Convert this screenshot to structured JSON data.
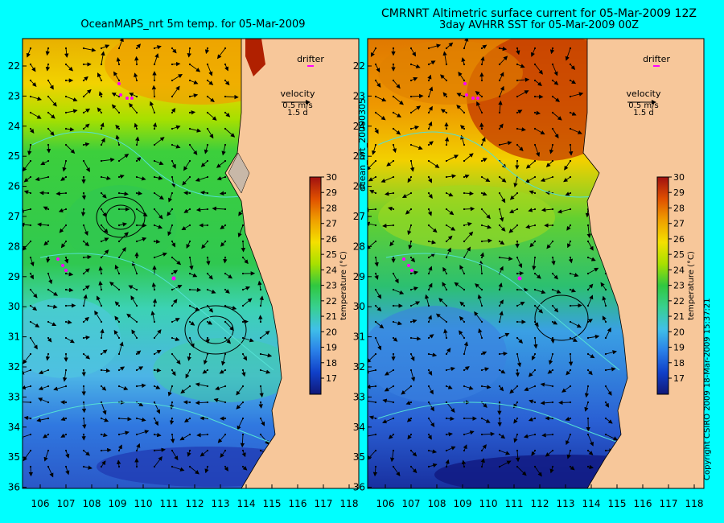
{
  "titles": {
    "left": "OceanMAPS_nrt 5m temp. for 05-Mar-2009",
    "right_line1": "CMRNRT Altimetric surface current for 05-Mar-2009 12Z",
    "right_line2": "3day AVHRR SST for 05-Mar-2009 00Z"
  },
  "side_labels": {
    "run_id": "ocean_nrt_20090305",
    "copyright": "Copyright CSIRO 2009    18-Mar-2009 15:37:21"
  },
  "legend": {
    "drifter": "drifter",
    "velocity": "velocity",
    "speed": "0.5 m/s",
    "scale2": "1.5 d"
  },
  "colorbar": {
    "label": "temperature (°C)",
    "ticks": [
      "17",
      "18",
      "19",
      "20",
      "21",
      "22",
      "23",
      "24",
      "25",
      "26",
      "27",
      "28",
      "29",
      "30"
    ]
  },
  "axes": {
    "lat_labels": [
      "22",
      "23",
      "24",
      "25",
      "26",
      "27",
      "28",
      "29",
      "30",
      "31",
      "32",
      "33",
      "34",
      "35",
      "36"
    ],
    "lon_labels": [
      "106",
      "107",
      "108",
      "109",
      "110",
      "111",
      "112",
      "113",
      "114",
      "115",
      "116",
      "117",
      "118"
    ]
  },
  "colors": {
    "background": "#00ffff",
    "land": "#f7c79a",
    "bathymetry_contour": "#54e0d4",
    "drifter": "#ff00ff"
  }
}
